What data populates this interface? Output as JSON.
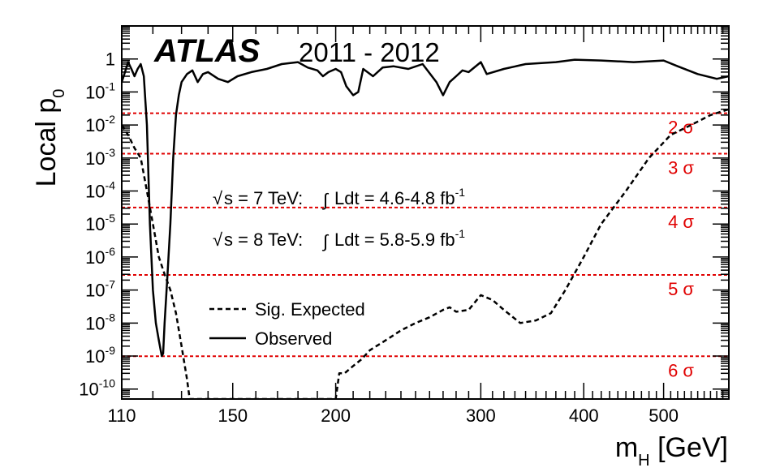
{
  "chart_data": {
    "type": "line",
    "title": "",
    "brand": "ATLAS",
    "years": "2011 - 2012",
    "ylabel": {
      "main": "Local p",
      "sub": "0"
    },
    "xlabel": {
      "main": "m",
      "sub": "H",
      "unit": " [GeV]"
    },
    "x_scale": "log",
    "y_scale": "log",
    "xlim": [
      110,
      600
    ],
    "ylim": [
      5e-11,
      10
    ],
    "x_ticks": [
      {
        "v": 110,
        "label": "110"
      },
      {
        "v": 150,
        "label": "150"
      },
      {
        "v": 200,
        "label": "200"
      },
      {
        "v": 300,
        "label": "300"
      },
      {
        "v": 400,
        "label": "400"
      },
      {
        "v": 500,
        "label": "500"
      }
    ],
    "y_ticks": [
      {
        "e": 0,
        "base": "1",
        "exp": ""
      },
      {
        "e": -1,
        "base": "10",
        "exp": "-1"
      },
      {
        "e": -2,
        "base": "10",
        "exp": "-2"
      },
      {
        "e": -3,
        "base": "10",
        "exp": "-3"
      },
      {
        "e": -4,
        "base": "10",
        "exp": "-4"
      },
      {
        "e": -5,
        "base": "10",
        "exp": "-5"
      },
      {
        "e": -6,
        "base": "10",
        "exp": "-6"
      },
      {
        "e": -7,
        "base": "10",
        "exp": "-7"
      },
      {
        "e": -8,
        "base": "10",
        "exp": "-8"
      },
      {
        "e": -9,
        "base": "10",
        "exp": "-9"
      },
      {
        "e": -10,
        "base": "10",
        "exp": "-10"
      }
    ],
    "sigma_lines": [
      {
        "label": "2 σ",
        "p": 0.02275
      },
      {
        "label": "3 σ",
        "p": 0.00135
      },
      {
        "label": "4 σ",
        "p": 3.17e-05
      },
      {
        "label": "5 σ",
        "p": 2.87e-07
      },
      {
        "label": "6 σ",
        "p": 9.87e-10
      }
    ],
    "sigma_color": "#e00000",
    "annotations": [
      {
        "sqrt_label": "s = 7 TeV: ",
        "int_label": "Ldt = 4.6-4.8 fb",
        "exp": "-1"
      },
      {
        "sqrt_label": "s = 8 TeV: ",
        "int_label": "Ldt = 5.8-5.9 fb",
        "exp": "-1"
      }
    ],
    "legend": [
      {
        "label": "Sig. Expected",
        "style": "dashed"
      },
      {
        "label": "Observed",
        "style": "solid"
      }
    ],
    "series": [
      {
        "name": "Observed",
        "style": "solid",
        "points": [
          [
            110,
            0.2
          ],
          [
            111,
            0.4
          ],
          [
            112,
            0.8
          ],
          [
            113,
            0.5
          ],
          [
            114,
            0.3
          ],
          [
            115,
            0.5
          ],
          [
            116,
            0.7
          ],
          [
            117,
            0.3
          ],
          [
            118,
            0.01
          ],
          [
            119,
            1e-05
          ],
          [
            120,
            1e-07
          ],
          [
            121,
            1e-08
          ],
          [
            122,
            3e-09
          ],
          [
            123,
            1e-09
          ],
          [
            123.5,
            1.2e-09
          ],
          [
            124,
            1e-08
          ],
          [
            125,
            3e-07
          ],
          [
            126,
            1e-05
          ],
          [
            127,
            0.001
          ],
          [
            128,
            0.02
          ],
          [
            129,
            0.08
          ],
          [
            130,
            0.2
          ],
          [
            132,
            0.35
          ],
          [
            134,
            0.45
          ],
          [
            136,
            0.2
          ],
          [
            138,
            0.35
          ],
          [
            140,
            0.4
          ],
          [
            144,
            0.25
          ],
          [
            148,
            0.2
          ],
          [
            152,
            0.3
          ],
          [
            158,
            0.4
          ],
          [
            165,
            0.5
          ],
          [
            172,
            0.7
          ],
          [
            180,
            0.8
          ],
          [
            185,
            0.55
          ],
          [
            190,
            0.45
          ],
          [
            193,
            0.3
          ],
          [
            196,
            0.4
          ],
          [
            200,
            0.5
          ],
          [
            203,
            0.4
          ],
          [
            206,
            0.15
          ],
          [
            210,
            0.08
          ],
          [
            213,
            0.1
          ],
          [
            216,
            0.5
          ],
          [
            222,
            0.3
          ],
          [
            228,
            0.55
          ],
          [
            235,
            0.6
          ],
          [
            245,
            0.5
          ],
          [
            255,
            0.7
          ],
          [
            265,
            0.2
          ],
          [
            270,
            0.08
          ],
          [
            275,
            0.2
          ],
          [
            280,
            0.3
          ],
          [
            285,
            0.45
          ],
          [
            290,
            0.4
          ],
          [
            300,
            0.8
          ],
          [
            305,
            0.35
          ],
          [
            320,
            0.5
          ],
          [
            340,
            0.7
          ],
          [
            370,
            0.8
          ],
          [
            390,
            0.95
          ],
          [
            420,
            0.9
          ],
          [
            460,
            0.8
          ],
          [
            500,
            0.9
          ],
          [
            520,
            0.6
          ],
          [
            550,
            0.35
          ],
          [
            580,
            0.25
          ],
          [
            600,
            0.3
          ]
        ]
      },
      {
        "name": "Sig. Expected",
        "style": "dashed",
        "points": [
          [
            110,
            0.01
          ],
          [
            112,
            0.005
          ],
          [
            114,
            0.002
          ],
          [
            116,
            0.001
          ],
          [
            118,
            0.0001
          ],
          [
            120,
            1e-05
          ],
          [
            122,
            1e-06
          ],
          [
            124,
            3e-07
          ],
          [
            126,
            1e-07
          ],
          [
            128,
            2e-08
          ],
          [
            130,
            2e-09
          ],
          [
            132,
            2e-10
          ],
          [
            133,
            5e-11
          ],
          [
            200,
            5e-11
          ],
          [
            202,
            3e-10
          ],
          [
            205,
            3e-10
          ],
          [
            210,
            5e-10
          ],
          [
            215,
            8e-10
          ],
          [
            220,
            1.5e-09
          ],
          [
            230,
            3e-09
          ],
          [
            240,
            6e-09
          ],
          [
            250,
            1e-08
          ],
          [
            260,
            1.5e-08
          ],
          [
            270,
            2.5e-08
          ],
          [
            275,
            3e-08
          ],
          [
            280,
            2.2e-08
          ],
          [
            290,
            2.5e-08
          ],
          [
            300,
            7e-08
          ],
          [
            310,
            5e-08
          ],
          [
            320,
            2.5e-08
          ],
          [
            335,
            1e-08
          ],
          [
            350,
            1.2e-08
          ],
          [
            365,
            2e-08
          ],
          [
            380,
            1e-07
          ],
          [
            400,
            1e-06
          ],
          [
            420,
            1e-05
          ],
          [
            450,
            0.0001
          ],
          [
            480,
            0.001
          ],
          [
            510,
            0.005
          ],
          [
            540,
            0.01
          ],
          [
            570,
            0.02
          ],
          [
            600,
            0.03
          ]
        ]
      }
    ]
  }
}
